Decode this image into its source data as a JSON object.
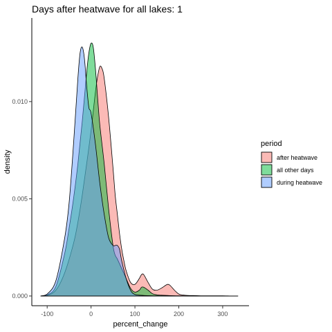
{
  "chart_data": {
    "type": "area",
    "title": "Days after heatwave for all lakes: 1",
    "xlabel": "percent_change",
    "ylabel": "density",
    "xlim": [
      -135,
      360
    ],
    "ylim": [
      -0.0005,
      0.0143
    ],
    "x_ticks": [
      -100,
      0,
      100,
      200,
      300
    ],
    "x_tick_labels": [
      "-100",
      "0",
      "100",
      "200",
      "300"
    ],
    "y_ticks": [
      0.0,
      0.005,
      0.01
    ],
    "y_tick_labels": [
      "0.000",
      "0.005",
      "0.010"
    ],
    "grid": false,
    "legend": {
      "title": "period",
      "placement": "right",
      "entries": [
        "after heatwave",
        "all other days",
        "during heatwave"
      ]
    },
    "colors": {
      "after heatwave": "#F8766D",
      "all other days": "#00BA38",
      "during heatwave": "#619CFF"
    },
    "series": [
      {
        "name": "after heatwave",
        "x": [
          -115,
          -100,
          -80,
          -60,
          -40,
          -30,
          -20,
          -10,
          0,
          5,
          10,
          15,
          20,
          25,
          30,
          40,
          50,
          55,
          60,
          65,
          70,
          75,
          80,
          90,
          100,
          110,
          115,
          120,
          130,
          140,
          150,
          160,
          170,
          175,
          180,
          190,
          200,
          210,
          220,
          240,
          260,
          280,
          300,
          320,
          335
        ],
        "y": [
          0.0,
          3e-05,
          0.0003,
          0.0012,
          0.0027,
          0.0038,
          0.0052,
          0.0068,
          0.0085,
          0.0095,
          0.0105,
          0.0113,
          0.0118,
          0.0117,
          0.0112,
          0.0092,
          0.0066,
          0.0052,
          0.0042,
          0.0032,
          0.0024,
          0.0018,
          0.0013,
          0.0007,
          0.0006,
          0.0009,
          0.0011,
          0.0011,
          0.0007,
          0.00035,
          0.0003,
          0.0004,
          0.00055,
          0.0006,
          0.00055,
          0.0003,
          0.0001,
          5e-05,
          3e-05,
          2e-05,
          1e-05,
          1e-05,
          1e-05,
          0.0,
          0.0
        ]
      },
      {
        "name": "all other days",
        "x": [
          -115,
          -100,
          -80,
          -60,
          -50,
          -40,
          -30,
          -20,
          -10,
          -5,
          0,
          5,
          10,
          15,
          20,
          30,
          40,
          50,
          55,
          60,
          70,
          80,
          90,
          100,
          110,
          115,
          120,
          130,
          140,
          150,
          160,
          180,
          200,
          220,
          260,
          300,
          335
        ],
        "y": [
          0.0,
          5e-05,
          0.0005,
          0.0022,
          0.0035,
          0.005,
          0.0068,
          0.009,
          0.0115,
          0.0125,
          0.013,
          0.0128,
          0.0117,
          0.0102,
          0.0088,
          0.0068,
          0.0045,
          0.0026,
          0.0021,
          0.0019,
          0.0014,
          0.0009,
          0.0004,
          0.0002,
          0.0003,
          0.00045,
          0.00045,
          0.0003,
          0.00012,
          6e-05,
          4e-05,
          2e-05,
          1e-05,
          1e-05,
          0.0,
          0.0,
          0.0
        ]
      },
      {
        "name": "during heatwave",
        "x": [
          -115,
          -100,
          -80,
          -60,
          -50,
          -40,
          -30,
          -25,
          -20,
          -15,
          -10,
          -5,
          0,
          10,
          20,
          30,
          40,
          50,
          55,
          60,
          65,
          70,
          80,
          90,
          100,
          120,
          150,
          200,
          300,
          335
        ],
        "y": [
          0.0,
          0.0001,
          0.0008,
          0.003,
          0.0048,
          0.0078,
          0.0112,
          0.0125,
          0.0128,
          0.0122,
          0.0108,
          0.0097,
          0.0094,
          0.0078,
          0.0058,
          0.0042,
          0.003,
          0.0026,
          0.0026,
          0.0026,
          0.0024,
          0.0018,
          0.0009,
          0.0003,
          8e-05,
          3e-05,
          1e-05,
          0.0,
          0.0,
          0.0
        ]
      }
    ]
  }
}
